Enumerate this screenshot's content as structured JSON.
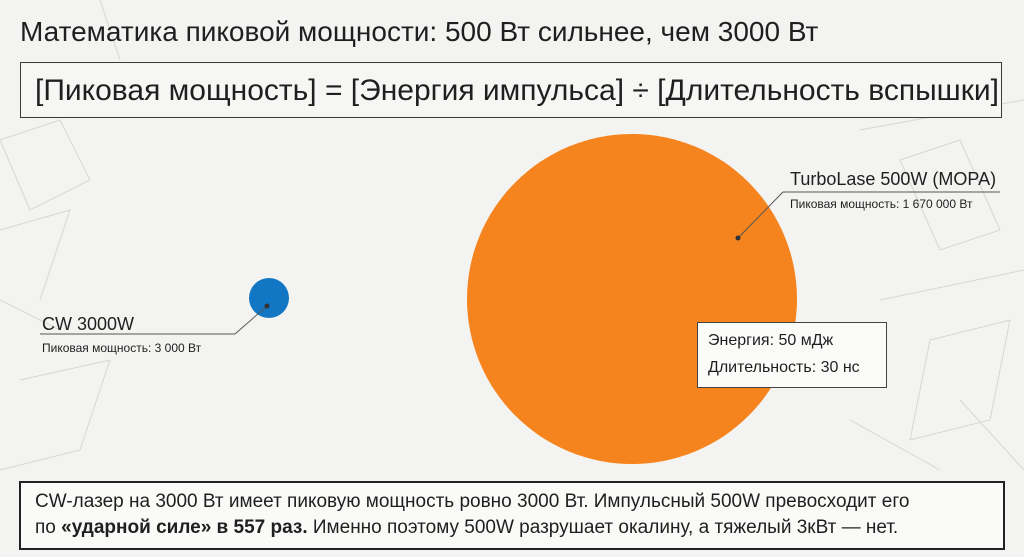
{
  "title": "Математика пиковой мощности: 500 Вт сильнее, чем 3000 Вт",
  "formula": "[Пиковая мощность] = [Энергия импульса] ÷ [Длительность вспышки]",
  "cw_laser": {
    "name": "CW 3000W",
    "peak_power_text": "Пиковая мощность: 3 000 Вт",
    "peak_power_w": 3000,
    "color": "#1177c4"
  },
  "mopa_laser": {
    "name": "TurboLase 500W (MOPA)",
    "peak_power_text": "Пиковая мощность: 1 670 000 Вт",
    "peak_power_w": 1670000,
    "color": "#f5841f",
    "energy_text": "Энергия: 50 мДж",
    "duration_text": "Длительность: 30 нс"
  },
  "summary": {
    "line1": "CW-лазер на 3000 Вт имеет пиковую мощность ровно 3000 Вт. Импульсный 500W превосходит его",
    "line2_prefix": "по ",
    "line2_bold": "«ударной силе» в 557 раз.",
    "line2_suffix": " Именно поэтому 500W разрушает окалину, а тяжелый 3кВт — нет."
  }
}
